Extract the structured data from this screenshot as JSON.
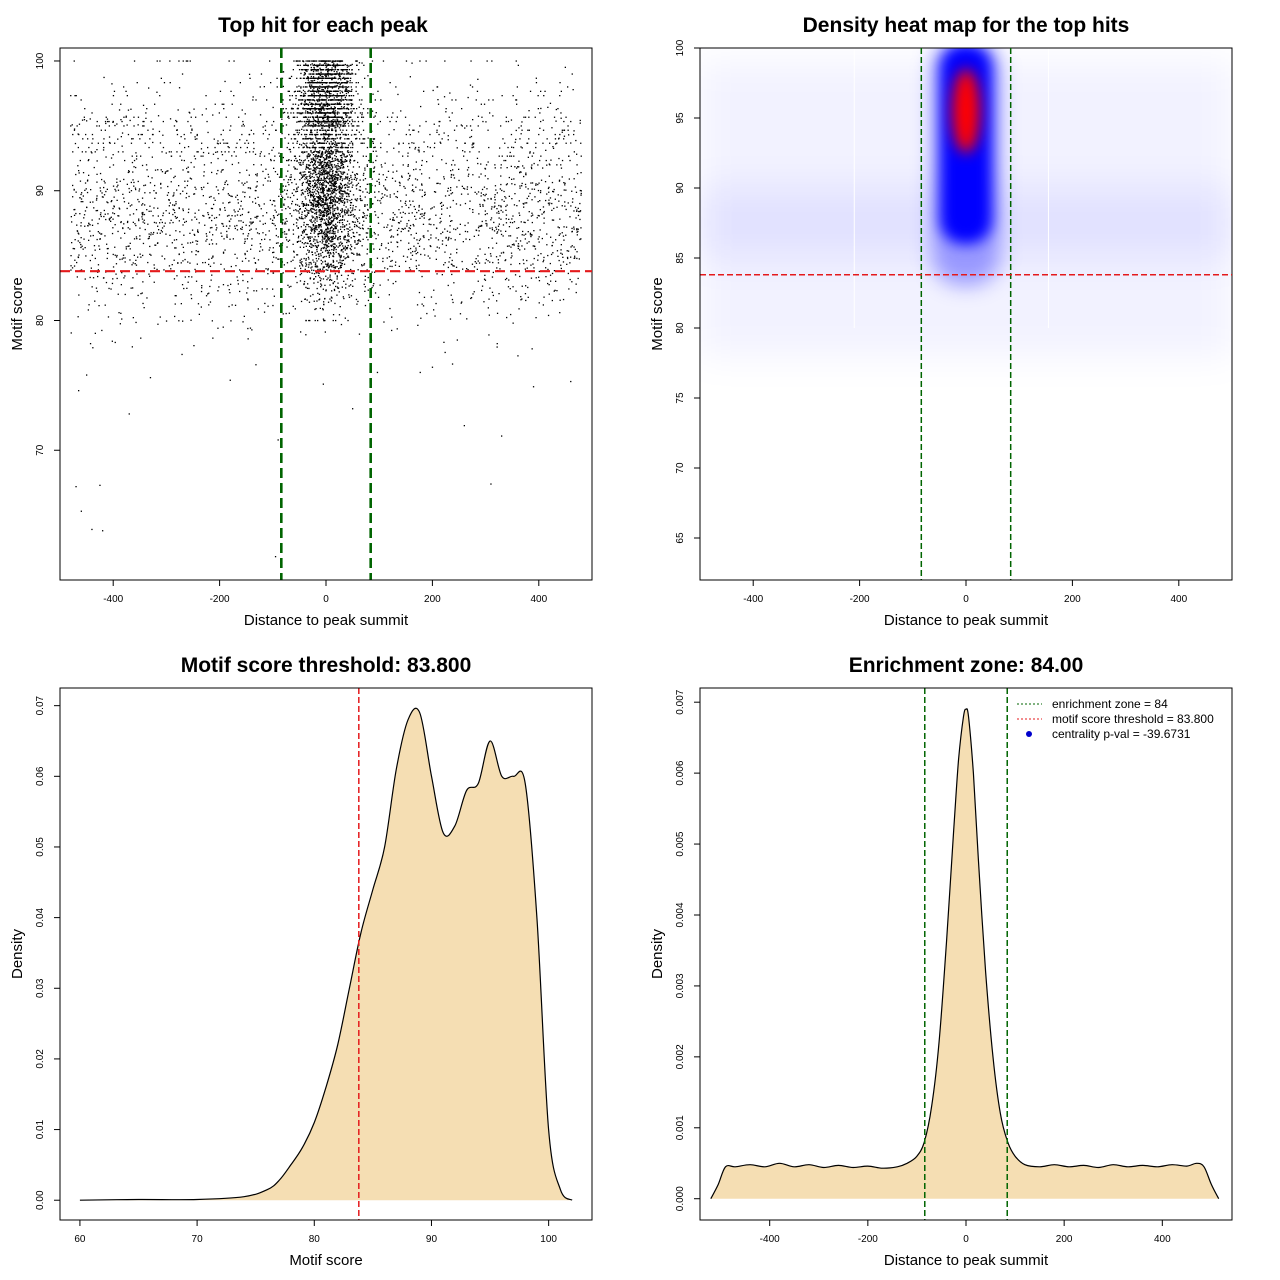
{
  "colors": {
    "vline": "#006400",
    "hline": "#e41a1c",
    "fill": "#f5deb3",
    "heat_low": "#0000ff",
    "heat_high": "#ff0000",
    "legend_dot": "#0000cc"
  },
  "chart_data": [
    {
      "id": "scatter",
      "type": "scatter",
      "title": "Top hit for each peak",
      "xlabel": "Distance to peak summit",
      "ylabel": "Motif score",
      "xlim": [
        -500,
        500
      ],
      "ylim": [
        60,
        101
      ],
      "xticks": [
        -400,
        -200,
        0,
        200,
        400
      ],
      "yticks": [
        70,
        80,
        90,
        100
      ],
      "vlines": [
        -84,
        84
      ],
      "hline": 83.8,
      "outliers": [
        {
          "x": -470,
          "y": 67.2
        },
        {
          "x": -460,
          "y": 65.3
        },
        {
          "x": -440,
          "y": 63.9
        },
        {
          "x": -420,
          "y": 63.8
        },
        {
          "x": -425,
          "y": 67.3
        },
        {
          "x": -370,
          "y": 72.8
        },
        {
          "x": -465,
          "y": 74.6
        },
        {
          "x": -450,
          "y": 75.8
        },
        {
          "x": -90,
          "y": 70.8
        },
        {
          "x": -95,
          "y": 61.8
        },
        {
          "x": 50,
          "y": 73.2
        },
        {
          "x": 260,
          "y": 71.9
        },
        {
          "x": 330,
          "y": 71.1
        },
        {
          "x": 310,
          "y": 67.4
        },
        {
          "x": 390,
          "y": 74.9
        },
        {
          "x": 460,
          "y": 75.3
        },
        {
          "x": -330,
          "y": 75.6
        },
        {
          "x": -180,
          "y": 75.4
        },
        {
          "x": 200,
          "y": 76.4
        },
        {
          "x": -5,
          "y": 75.1
        }
      ]
    },
    {
      "id": "heatmap",
      "type": "heatmap",
      "title": "Density heat map for the top hits",
      "xlabel": "Distance to peak summit",
      "ylabel": "Motif score",
      "xlim": [
        -500,
        500
      ],
      "ylim": [
        62,
        100
      ],
      "xticks": [
        -400,
        -200,
        0,
        200,
        400
      ],
      "yticks": [
        65,
        70,
        75,
        80,
        85,
        90,
        95,
        100
      ],
      "vlines": [
        -84,
        84
      ],
      "hline": 83.8,
      "hotspot": {
        "x": 0,
        "y_center": 95.5
      }
    },
    {
      "id": "score_density",
      "type": "area",
      "title": "Motif score threshold: 83.800",
      "xlabel": "Motif score",
      "ylabel": "Density",
      "xlim": [
        58.3,
        103.7
      ],
      "ylim": [
        -0.0028,
        0.0725
      ],
      "xticks": [
        60,
        70,
        80,
        90,
        100
      ],
      "yticks": [
        0.0,
        0.01,
        0.02,
        0.03,
        0.04,
        0.05,
        0.06,
        0.07
      ],
      "ytick_labels": [
        "0.00",
        "0.01",
        "0.02",
        "0.03",
        "0.04",
        "0.05",
        "0.06",
        "0.07"
      ],
      "vline": 83.8,
      "x": [
        60,
        65,
        70,
        74,
        76,
        77,
        78,
        79,
        80,
        81,
        82,
        83,
        84,
        85,
        86,
        87,
        88,
        89,
        90,
        91,
        92,
        93,
        94,
        95,
        96,
        97,
        98,
        99,
        100,
        101,
        102
      ],
      "y": [
        0.0,
        0.0001,
        0.0001,
        0.0005,
        0.0015,
        0.0028,
        0.005,
        0.0075,
        0.011,
        0.016,
        0.022,
        0.03,
        0.038,
        0.044,
        0.05,
        0.061,
        0.068,
        0.069,
        0.06,
        0.052,
        0.053,
        0.058,
        0.059,
        0.065,
        0.06,
        0.06,
        0.059,
        0.04,
        0.01,
        0.0015,
        0.0
      ]
    },
    {
      "id": "distance_density",
      "type": "area",
      "title": "Enrichment zone: 84.00",
      "xlabel": "Distance to peak summit",
      "ylabel": "Density",
      "xlim": [
        -542,
        542
      ],
      "ylim": [
        -0.0003,
        0.0072
      ],
      "xticks": [
        -400,
        -200,
        0,
        200,
        400
      ],
      "yticks": [
        0.0,
        0.001,
        0.002,
        0.003,
        0.004,
        0.005,
        0.006,
        0.007
      ],
      "ytick_labels": [
        "0.000",
        "0.001",
        "0.002",
        "0.003",
        "0.004",
        "0.005",
        "0.006",
        "0.007"
      ],
      "vlines": [
        -84,
        84
      ],
      "x": [
        -520,
        -505,
        -490,
        -470,
        -440,
        -410,
        -380,
        -350,
        -320,
        -290,
        -260,
        -230,
        -200,
        -170,
        -140,
        -120,
        -100,
        -85,
        -70,
        -55,
        -40,
        -25,
        -15,
        -5,
        0,
        5,
        15,
        25,
        40,
        55,
        70,
        85,
        100,
        120,
        150,
        180,
        210,
        240,
        270,
        300,
        330,
        360,
        390,
        420,
        450,
        470,
        485,
        500,
        515
      ],
      "y": [
        0.0,
        0.0002,
        0.00045,
        0.00045,
        0.00048,
        0.00045,
        0.0005,
        0.00045,
        0.00048,
        0.00044,
        0.00047,
        0.00044,
        0.00046,
        0.00043,
        0.00045,
        0.0005,
        0.0006,
        0.0008,
        0.0013,
        0.0022,
        0.0036,
        0.0052,
        0.0062,
        0.0068,
        0.0069,
        0.0068,
        0.006,
        0.0048,
        0.0032,
        0.002,
        0.0012,
        0.0008,
        0.0006,
        0.00048,
        0.00045,
        0.00048,
        0.00045,
        0.00047,
        0.00044,
        0.00048,
        0.00045,
        0.00047,
        0.00045,
        0.00048,
        0.00046,
        0.0005,
        0.00045,
        0.0002,
        0.0
      ],
      "legend": [
        {
          "label": "enrichment zone = 84",
          "kind": "dotted-line",
          "color": "#006400"
        },
        {
          "label": "motif score threshold = 83.800",
          "kind": "dotted-line",
          "color": "#e41a1c"
        },
        {
          "label": "centrality p-val = -39.6731",
          "kind": "dot",
          "color": "#0000cc"
        }
      ]
    }
  ]
}
